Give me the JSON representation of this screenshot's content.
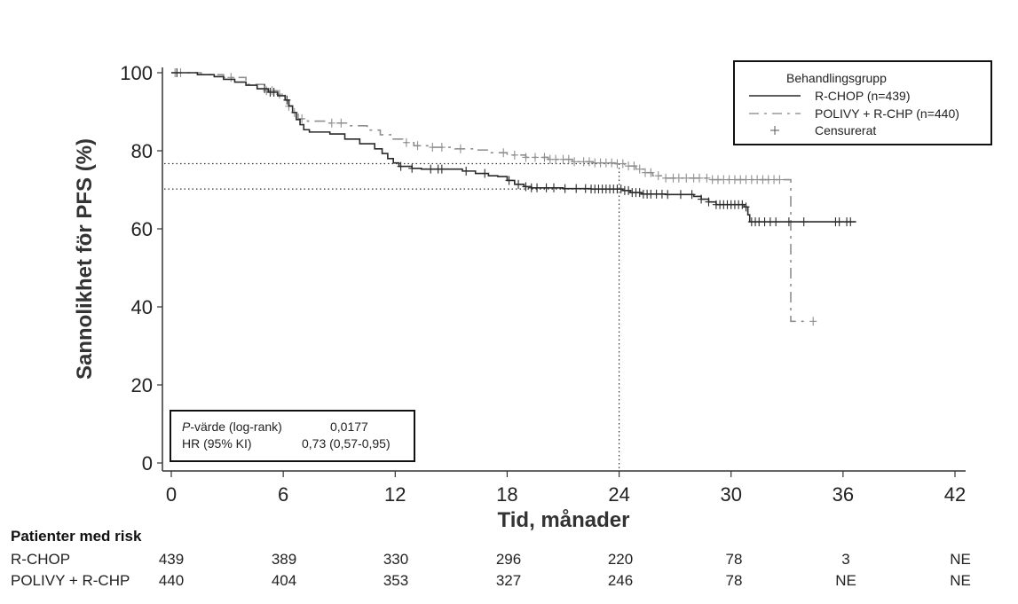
{
  "chart_data": {
    "type": "line",
    "subtype": "kaplan-meier",
    "xlabel": "Tid, månader",
    "ylabel": "Sannolikhet för PFS  (%)",
    "xlim": [
      0,
      42
    ],
    "ylim": [
      0,
      100
    ],
    "x_ticks": [
      "0",
      "6",
      "12",
      "18",
      "24",
      "30",
      "36",
      "42"
    ],
    "x_tick_values": [
      0,
      6,
      12,
      18,
      24,
      30,
      36,
      42
    ],
    "y_ticks": [
      "0",
      "20",
      "40",
      "60",
      "80",
      "100"
    ],
    "y_tick_values": [
      0,
      20,
      40,
      60,
      80,
      100
    ],
    "grid": false,
    "reference_lines": {
      "x": 24,
      "y": [
        76.7,
        70.2
      ]
    },
    "legend": {
      "title": "Behandlingsgrupp",
      "placement": "top-right",
      "entries": [
        "R-CHOP (n=439)",
        "POLIVY + R-CHP (n=440)",
        "Censurerat"
      ],
      "censor_symbol": "+"
    },
    "series": [
      {
        "name": "R-CHOP (n=439)",
        "color": "#2a2a2a",
        "style": "solid",
        "steps": [
          [
            0,
            100
          ],
          [
            1.4,
            99.5
          ],
          [
            2.3,
            99.0
          ],
          [
            2.8,
            98.3
          ],
          [
            3.4,
            97.6
          ],
          [
            4.0,
            96.8
          ],
          [
            4.6,
            95.9
          ],
          [
            5.2,
            95.0
          ],
          [
            5.7,
            94.1
          ],
          [
            6.1,
            93.0
          ],
          [
            6.3,
            91.5
          ],
          [
            6.5,
            89.8
          ],
          [
            6.7,
            88.0
          ],
          [
            6.9,
            86.7
          ],
          [
            7.1,
            85.4
          ],
          [
            7.4,
            84.8
          ],
          [
            8.5,
            84.3
          ],
          [
            9.3,
            83.0
          ],
          [
            10.1,
            81.8
          ],
          [
            10.9,
            80.5
          ],
          [
            11.3,
            79.3
          ],
          [
            11.6,
            78.0
          ],
          [
            11.9,
            76.9
          ],
          [
            12.2,
            76.0
          ],
          [
            12.9,
            75.5
          ],
          [
            13.4,
            75.3
          ],
          [
            15.6,
            74.8
          ],
          [
            16.3,
            74.2
          ],
          [
            17.0,
            73.6
          ],
          [
            17.5,
            73.4
          ],
          [
            18.0,
            72.4
          ],
          [
            18.4,
            71.4
          ],
          [
            18.9,
            70.8
          ],
          [
            19.3,
            70.5
          ],
          [
            21.0,
            70.3
          ],
          [
            22.5,
            70.2
          ],
          [
            24.2,
            69.8
          ],
          [
            24.6,
            69.3
          ],
          [
            25.2,
            68.9
          ],
          [
            26.5,
            68.8
          ],
          [
            28.0,
            68.3
          ],
          [
            28.4,
            67.6
          ],
          [
            28.8,
            66.9
          ],
          [
            29.2,
            66.2
          ],
          [
            30.7,
            65.6
          ],
          [
            30.9,
            63.6
          ],
          [
            31.0,
            61.8
          ],
          [
            36.7,
            61.8
          ]
        ],
        "censor_times": [
          0.3,
          5.0,
          5.3,
          5.5,
          6.2,
          12.3,
          12.9,
          13.9,
          14.3,
          14.5,
          15.8,
          16.8,
          18.1,
          18.6,
          19.0,
          19.3,
          19.6,
          20.1,
          20.5,
          21.1,
          21.7,
          22.2,
          22.5,
          22.7,
          22.9,
          23.1,
          23.3,
          23.5,
          23.7,
          23.9,
          24.1,
          24.3,
          24.5,
          24.7,
          24.9,
          25.1,
          25.3,
          25.5,
          25.7,
          26.0,
          26.3,
          26.6,
          27.3,
          27.9,
          28.4,
          28.8,
          29.2,
          29.4,
          29.6,
          29.8,
          30.0,
          30.2,
          30.4,
          30.6,
          30.8,
          31.1,
          31.3,
          31.5,
          31.8,
          32.1,
          32.4,
          33.1,
          33.9,
          35.6,
          35.8,
          36.2,
          36.4
        ]
      },
      {
        "name": "POLIVY + R-CHP (n=440)",
        "color": "#8f8f8f",
        "style": "dash-dot",
        "steps": [
          [
            0,
            100
          ],
          [
            1.6,
            99.5
          ],
          [
            2.8,
            98.8
          ],
          [
            4.0,
            97.0
          ],
          [
            5.0,
            95.4
          ],
          [
            5.7,
            94.5
          ],
          [
            6.1,
            93.0
          ],
          [
            6.3,
            91.4
          ],
          [
            6.5,
            89.8
          ],
          [
            6.8,
            88.2
          ],
          [
            7.3,
            87.6
          ],
          [
            8.4,
            87.1
          ],
          [
            9.6,
            86.4
          ],
          [
            10.5,
            85.3
          ],
          [
            11.2,
            84.1
          ],
          [
            11.8,
            83.0
          ],
          [
            12.4,
            82.1
          ],
          [
            13.0,
            81.3
          ],
          [
            14.0,
            80.9
          ],
          [
            15.2,
            80.5
          ],
          [
            16.2,
            80.2
          ],
          [
            17.1,
            79.5
          ],
          [
            18.0,
            78.9
          ],
          [
            19.0,
            78.3
          ],
          [
            20.2,
            77.8
          ],
          [
            21.5,
            77.2
          ],
          [
            22.6,
            76.9
          ],
          [
            23.8,
            76.7
          ],
          [
            24.3,
            76.1
          ],
          [
            24.9,
            75.3
          ],
          [
            25.4,
            74.4
          ],
          [
            25.8,
            73.6
          ],
          [
            26.3,
            73.0
          ],
          [
            28.8,
            72.6
          ],
          [
            33.2,
            72.6
          ],
          [
            33.2,
            36.3
          ],
          [
            34.1,
            36.3
          ]
        ],
        "censor_times": [
          0.2,
          0.5,
          3.2,
          5.1,
          5.4,
          5.8,
          6.3,
          6.6,
          7.0,
          8.6,
          9.1,
          12.6,
          13.2,
          14.0,
          14.5,
          15.5,
          17.8,
          18.4,
          19.0,
          19.5,
          20.0,
          20.3,
          20.6,
          21.0,
          21.3,
          21.6,
          22.1,
          22.4,
          22.7,
          23.0,
          23.3,
          23.6,
          23.9,
          24.2,
          24.5,
          24.8,
          25.1,
          25.4,
          25.7,
          26.1,
          26.5,
          26.9,
          27.2,
          27.6,
          28.0,
          28.3,
          28.7,
          29.0,
          29.3,
          29.6,
          29.9,
          30.2,
          30.5,
          30.8,
          31.1,
          31.4,
          31.7,
          32.0,
          32.3,
          32.6,
          34.4
        ]
      }
    ]
  },
  "legend": {
    "title": "Behandlingsgrupp",
    "items": [
      {
        "label": "R-CHOP (n=439)",
        "symbol": "solid-line"
      },
      {
        "label": "POLIVY + R-CHP (n=440)",
        "symbol": "dash-dot-line"
      },
      {
        "label": "Censurerat",
        "symbol": "+"
      }
    ]
  },
  "stats": {
    "p_label_italic": "P",
    "p_label_rest": "-värde (log-rank)",
    "p_value": "0,0177",
    "hr_label": "HR (95% KI)",
    "hr_value": "0,73 (0,57-0,95)"
  },
  "risk_table": {
    "title": "Patienter med risk",
    "rows": [
      {
        "label": "R-CHOP",
        "values": [
          "439",
          "389",
          "330",
          "296",
          "220",
          "78",
          "3",
          "NE"
        ]
      },
      {
        "label": "POLIVY + R-CHP",
        "values": [
          "440",
          "404",
          "353",
          "327",
          "246",
          "78",
          "NE",
          "NE"
        ]
      }
    ]
  }
}
